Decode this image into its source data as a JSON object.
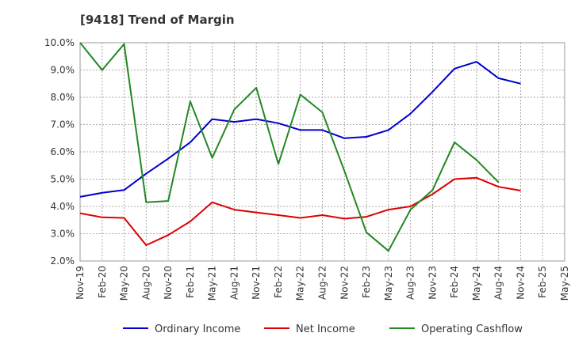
{
  "chart_data": {
    "type": "line",
    "title": "[9418]  Trend of Margin",
    "xlabel": "",
    "ylabel": "",
    "ylim": [
      2.0,
      10.0
    ],
    "ytick_values": [
      2.0,
      3.0,
      4.0,
      5.0,
      6.0,
      7.0,
      8.0,
      9.0,
      10.0
    ],
    "ytick_labels": [
      "2.0%",
      "3.0%",
      "4.0%",
      "5.0%",
      "6.0%",
      "7.0%",
      "8.0%",
      "9.0%",
      "10.0%"
    ],
    "categories": [
      "Nov-19",
      "Feb-20",
      "May-20",
      "Aug-20",
      "Nov-20",
      "Feb-21",
      "May-21",
      "Aug-21",
      "Nov-21",
      "Feb-22",
      "May-22",
      "Aug-22",
      "Nov-22",
      "Feb-23",
      "May-23",
      "Aug-23",
      "Nov-23",
      "Feb-24",
      "May-24",
      "Aug-24",
      "Nov-24",
      "Feb-25",
      "May-25"
    ],
    "grid": true,
    "legend_position": "bottom",
    "series": [
      {
        "name": "Ordinary Income",
        "color": "#0000cc",
        "values": [
          4.35,
          4.5,
          4.6,
          5.2,
          5.75,
          6.35,
          7.2,
          7.1,
          7.2,
          7.05,
          6.8,
          6.8,
          6.5,
          6.55,
          6.8,
          7.4,
          8.2,
          9.05,
          9.3,
          8.7,
          8.5,
          null,
          null
        ]
      },
      {
        "name": "Net Income",
        "color": "#dd0000",
        "values": [
          3.75,
          3.6,
          3.58,
          2.58,
          2.95,
          3.45,
          4.15,
          3.88,
          3.78,
          3.68,
          3.58,
          3.68,
          3.55,
          3.62,
          3.88,
          4.0,
          4.45,
          5.0,
          5.05,
          4.72,
          4.58,
          null,
          null
        ]
      },
      {
        "name": "Operating Cashflow",
        "color": "#228822",
        "values": [
          10.0,
          9.0,
          9.95,
          4.15,
          4.2,
          7.85,
          5.78,
          7.55,
          8.35,
          5.55,
          8.1,
          7.45,
          5.3,
          3.05,
          2.37,
          3.88,
          4.6,
          6.35,
          5.7,
          4.88,
          null,
          null,
          null
        ]
      }
    ]
  }
}
